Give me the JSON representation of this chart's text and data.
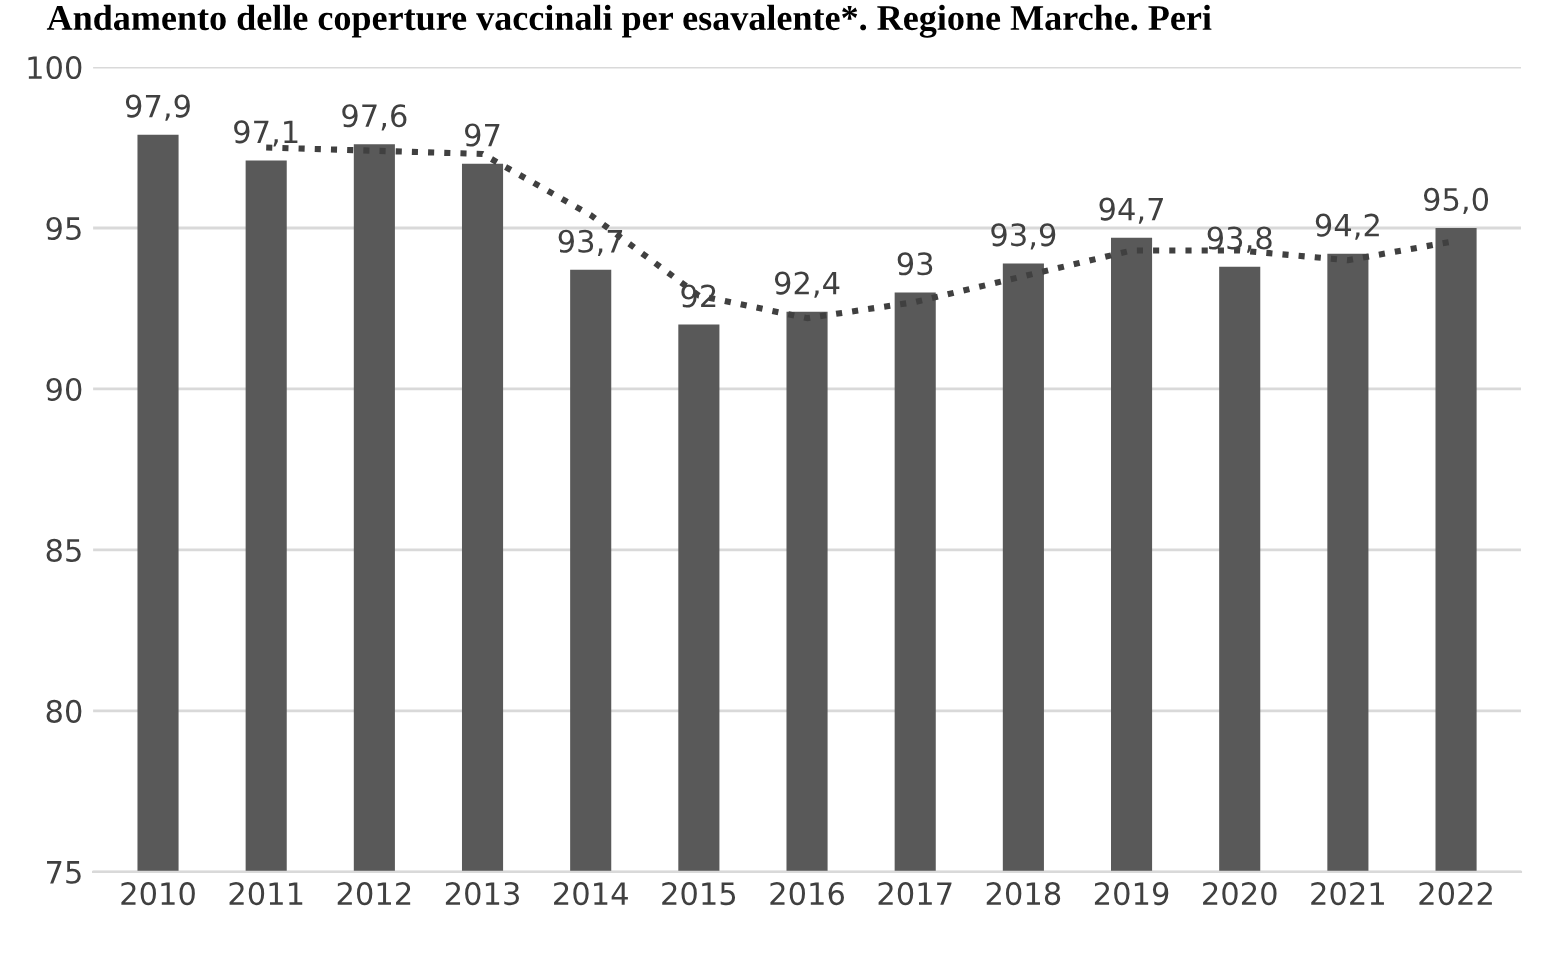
{
  "chart_data": {
    "type": "bar",
    "title": "Andamento delle coperture vaccinali per esavalente*. Regione Marche. Peri",
    "categories": [
      "2010",
      "2011",
      "2012",
      "2013",
      "2014",
      "2015",
      "2016",
      "2017",
      "2018",
      "2019",
      "2020",
      "2021",
      "2022"
    ],
    "series": [
      {
        "color": "#595959",
        "values": [
          97.9,
          97.1,
          97.6,
          97.0,
          93.7,
          92.0,
          92.4,
          93.0,
          93.9,
          94.7,
          93.8,
          94.2,
          95.0
        ],
        "value_labels": [
          "97,9",
          "97,1",
          "97,6",
          "97",
          "93,7",
          "92",
          "92,4",
          "93",
          "93,9",
          "94,7",
          "93,8",
          "94,2",
          "95,0"
        ]
      },
      {
        "type": "line",
        "color": "#404040",
        "line_style": "dotted",
        "values": [
          null,
          97.5,
          97.4,
          97.3,
          95.4,
          92.9,
          92.2,
          92.7,
          93.5,
          94.3,
          94.3,
          94.0,
          94.6
        ]
      }
    ],
    "ylim": [
      75,
      100
    ],
    "yticks": [
      75,
      80,
      85,
      90,
      95,
      100
    ],
    "grid": "y",
    "legend": false
  }
}
